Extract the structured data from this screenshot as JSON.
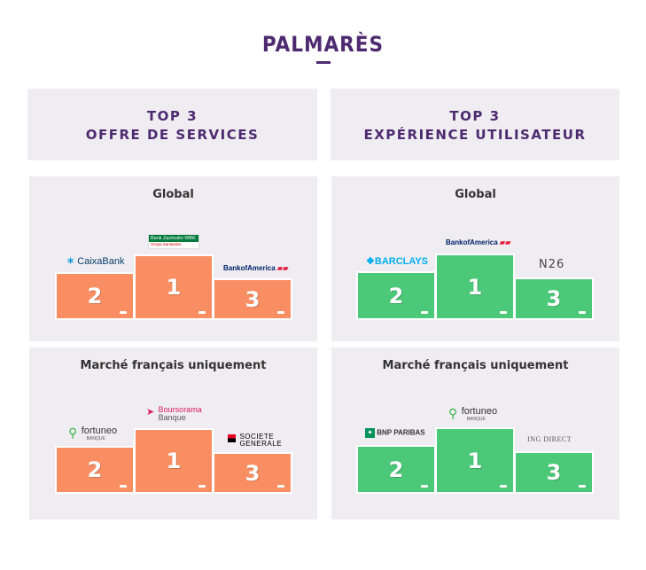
{
  "title": "PALMARÈS",
  "columns": [
    {
      "header_line1": "TOP 3",
      "header_line2": "OFFRE DE SERVICES",
      "panels": [
        {
          "title": "Global",
          "first": {
            "rank": "1",
            "logo": "Bank Zachodni WBK",
            "logo_sub": "Grupa Santander"
          },
          "second": {
            "rank": "2",
            "logo": "CaixaBank"
          },
          "third": {
            "rank": "3",
            "logo": "BankofAmerica"
          }
        },
        {
          "title": "Marché français uniquement",
          "first": {
            "rank": "1",
            "logo": "Boursorama",
            "logo_sub": "Banque"
          },
          "second": {
            "rank": "2",
            "logo": "fortuneo",
            "logo_sub": "BANQUE"
          },
          "third": {
            "rank": "3",
            "logo": "SOCIETE",
            "logo_sub": "GENERALE"
          }
        }
      ]
    },
    {
      "header_line1": "TOP 3",
      "header_line2": "EXPÉRIENCE UTILISATEUR",
      "panels": [
        {
          "title": "Global",
          "first": {
            "rank": "1",
            "logo": "BankofAmerica"
          },
          "second": {
            "rank": "2",
            "logo": "BARCLAYS"
          },
          "third": {
            "rank": "3",
            "logo": "N26"
          }
        },
        {
          "title": "Marché français uniquement",
          "first": {
            "rank": "1",
            "logo": "fortuneo",
            "logo_sub": "BANQUE"
          },
          "second": {
            "rank": "2",
            "logo": "BNP PARIBAS"
          },
          "third": {
            "rank": "3",
            "logo": "ING DIRECT"
          }
        }
      ]
    }
  ],
  "colors": {
    "brand_purple": "#4e2a70",
    "podium_orange": "#fa8e63",
    "podium_green": "#4cc879",
    "panel_bg": "#efedf1"
  }
}
